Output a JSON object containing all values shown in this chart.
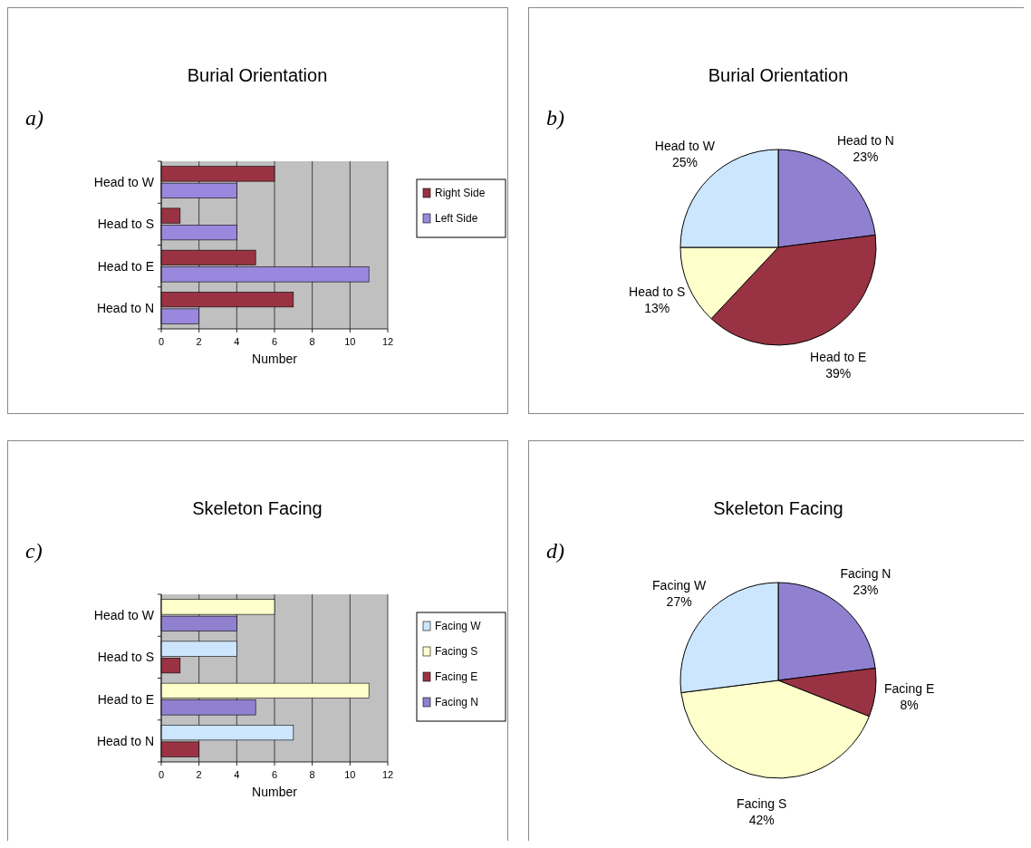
{
  "chart_data": [
    {
      "type": "bar",
      "orientation": "horizontal",
      "title": "Burial Orientation",
      "annotations": [
        "a)"
      ],
      "categories": [
        "Head to W",
        "Head to S",
        "Head to E",
        "Head to N"
      ],
      "series": [
        {
          "name": "Right Side",
          "color": "#993344",
          "values": [
            6,
            1,
            5,
            7
          ]
        },
        {
          "name": "Left Side",
          "color": "#9988dd",
          "values": [
            4,
            4,
            11,
            2
          ]
        }
      ],
      "xlim": [
        0,
        12
      ],
      "xticks": [
        0,
        2,
        4,
        6,
        8,
        10,
        12
      ],
      "xlabel": "Number",
      "grid": "x",
      "legend": "right"
    },
    {
      "type": "pie",
      "title": "Burial Orientation",
      "annotations": [
        "b)"
      ],
      "categories": [
        "Head to N",
        "Head to E",
        "Head to S",
        "Head to W"
      ],
      "values": [
        23,
        39,
        13,
        25
      ],
      "value_labels": [
        "23%",
        "39%",
        "13%",
        "25%"
      ],
      "colors": [
        "#9080d0",
        "#993344",
        "#ffffcc",
        "#cce6ff"
      ]
    },
    {
      "type": "bar",
      "orientation": "horizontal",
      "title": "Skeleton Facing",
      "annotations": [
        "c)"
      ],
      "categories": [
        "Head to W",
        "Head to S",
        "Head to E",
        "Head to N"
      ],
      "series": [
        {
          "name": "Facing W",
          "color": "#cce6ff",
          "values": [
            null,
            4,
            null,
            7
          ]
        },
        {
          "name": "Facing S",
          "color": "#ffffcc",
          "values": [
            6,
            null,
            11,
            null
          ]
        },
        {
          "name": "Facing E",
          "color": "#993344",
          "values": [
            null,
            1,
            null,
            2
          ]
        },
        {
          "name": "Facing N",
          "color": "#9080d0",
          "values": [
            4,
            null,
            5,
            null
          ]
        }
      ],
      "xlim": [
        0,
        12
      ],
      "xticks": [
        0,
        2,
        4,
        6,
        8,
        10,
        12
      ],
      "xlabel": "Number",
      "grid": "x",
      "legend": "right"
    },
    {
      "type": "pie",
      "title": "Skeleton Facing",
      "annotations": [
        "d)"
      ],
      "categories": [
        "Facing N",
        "Facing E",
        "Facing S",
        "Facing W"
      ],
      "values": [
        23,
        8,
        42,
        27
      ],
      "value_labels": [
        "23%",
        "8%",
        "42%",
        "27%"
      ],
      "colors": [
        "#9080d0",
        "#993344",
        "#ffffcc",
        "#cce6ff"
      ]
    }
  ]
}
